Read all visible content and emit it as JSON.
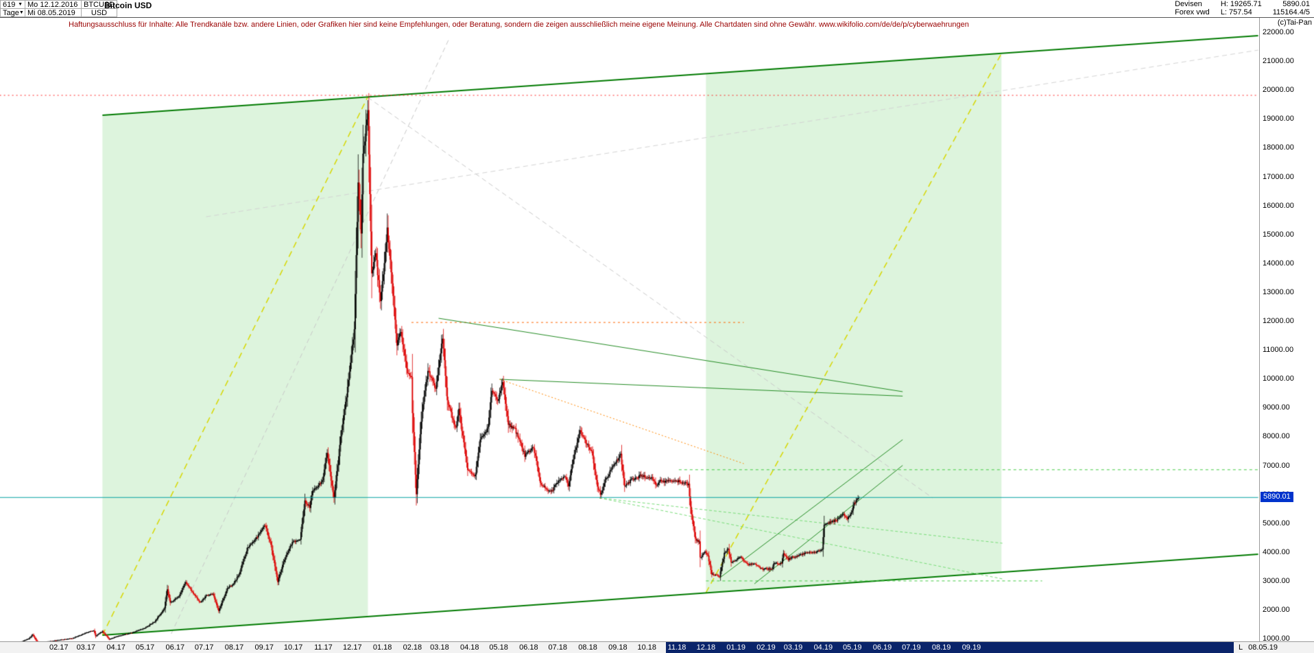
{
  "header": {
    "bars_count": "619",
    "timeframe": "Tage",
    "start_date": "Mo 12.12.2016",
    "end_date": "Mi 08.05.2019",
    "symbol": "BTCUSD",
    "currency": "USD",
    "title": "Bitcoin USD",
    "market": "Devisen",
    "source": "Forex vwd",
    "high_label": "H: 19265.71",
    "low_label": "L: 757.54",
    "last_price": "5890.01",
    "volume_info": "115164.4/5",
    "copyright": "(c)Tai-Pan"
  },
  "disclaimer": "Haftungsausschluss für Inhalte: Alle Trendkanäle bzw. andere Linien, oder Grafiken hier sind keine Empfehlungen, oder Beratung, sondern die zeigen ausschließlich meine eigene Meinung. Alle Chartdaten sind ohne Gewähr.  www.wikifolio.com/de/de/p/cyberwaehrungen",
  "axes": {
    "y_ticks": [
      "22000.00",
      "21000.00",
      "20000.00",
      "19000.00",
      "18000.00",
      "17000.00",
      "16000.00",
      "15000.00",
      "14000.00",
      "13000.00",
      "12000.00",
      "11000.00",
      "10000.00",
      "9000.00",
      "8000.00",
      "7000.00",
      "6000.00",
      "5000.00",
      "4000.00",
      "3000.00",
      "2000.00",
      "1000.00"
    ],
    "current_price_label": "5890.01",
    "last_label": "L",
    "last_date": "08.05.19",
    "selection_days": [
      658,
      1244
    ],
    "x_ticks": [
      {
        "label": "02.17",
        "day": 31
      },
      {
        "label": "03.17",
        "day": 59
      },
      {
        "label": "04.17",
        "day": 90
      },
      {
        "label": "05.17",
        "day": 120
      },
      {
        "label": "06.17",
        "day": 151
      },
      {
        "label": "07.17",
        "day": 181
      },
      {
        "label": "08.17",
        "day": 212
      },
      {
        "label": "09.17",
        "day": 243
      },
      {
        "label": "10.17",
        "day": 273
      },
      {
        "label": "11.17",
        "day": 304
      },
      {
        "label": "12.17",
        "day": 334
      },
      {
        "label": "01.18",
        "day": 365
      },
      {
        "label": "02.18",
        "day": 396
      },
      {
        "label": "03.18",
        "day": 424
      },
      {
        "label": "04.18",
        "day": 455
      },
      {
        "label": "05.18",
        "day": 485
      },
      {
        "label": "06.18",
        "day": 516
      },
      {
        "label": "07.18",
        "day": 546
      },
      {
        "label": "08.18",
        "day": 577
      },
      {
        "label": "09.18",
        "day": 608
      },
      {
        "label": "10.18",
        "day": 638
      },
      {
        "label": "11.18",
        "day": 669,
        "selected": true
      },
      {
        "label": "12.18",
        "day": 699,
        "selected": true
      },
      {
        "label": "01.19",
        "day": 730,
        "selected": true
      },
      {
        "label": "02.19",
        "day": 761,
        "selected": true
      },
      {
        "label": "03.19",
        "day": 789,
        "selected": true
      },
      {
        "label": "04.19",
        "day": 820,
        "selected": true
      },
      {
        "label": "05.19",
        "day": 850,
        "selected": true
      },
      {
        "label": "06.19",
        "day": 881,
        "selected": true
      },
      {
        "label": "07.19",
        "day": 911,
        "selected": true
      },
      {
        "label": "08.19",
        "day": 942,
        "selected": true
      },
      {
        "label": "09.19",
        "day": 973,
        "selected": true
      }
    ]
  },
  "chart_data": {
    "type": "candlestick",
    "title": "Bitcoin USD",
    "x_unit": "days since 2017-01-01 (series starts Mo 12.12.2016 = day -20, ends Mi 08.05.2019 = day 857)",
    "y_axis": {
      "scale": "linear",
      "label_min": 1000,
      "label_max": 22000,
      "step": 1000
    },
    "series_high": 19265.71,
    "series_low": 757.54,
    "last_close": 5890.01,
    "colors": {
      "up": "#000000",
      "down": "#dd0000",
      "current_price_line": "#00a0a0",
      "channel_fill": "rgba(144,220,144,0.30)"
    },
    "anchors": [
      [
        -20,
        772
      ],
      [
        -15,
        800
      ],
      [
        -8,
        895
      ],
      [
        0,
        998
      ],
      [
        4,
        1135
      ],
      [
        11,
        760
      ],
      [
        20,
        900
      ],
      [
        34,
        965
      ],
      [
        45,
        1010
      ],
      [
        58,
        1185
      ],
      [
        67,
        1290
      ],
      [
        69,
        1085
      ],
      [
        76,
        1255
      ],
      [
        83,
        975
      ],
      [
        92,
        1090
      ],
      [
        104,
        1185
      ],
      [
        119,
        1355
      ],
      [
        130,
        1590
      ],
      [
        140,
        2050
      ],
      [
        143,
        2700
      ],
      [
        146,
        2250
      ],
      [
        155,
        2465
      ],
      [
        162,
        2960
      ],
      [
        170,
        2550
      ],
      [
        177,
        2250
      ],
      [
        183,
        2480
      ],
      [
        190,
        2560
      ],
      [
        196,
        1960
      ],
      [
        205,
        2750
      ],
      [
        211,
        2875
      ],
      [
        217,
        3230
      ],
      [
        226,
        4160
      ],
      [
        233,
        4390
      ],
      [
        244,
        4950
      ],
      [
        250,
        4230
      ],
      [
        257,
        2980
      ],
      [
        263,
        3660
      ],
      [
        272,
        4340
      ],
      [
        280,
        4425
      ],
      [
        285,
        5750
      ],
      [
        290,
        5560
      ],
      [
        293,
        6120
      ],
      [
        303,
        6460
      ],
      [
        308,
        7400
      ],
      [
        315,
        5850
      ],
      [
        323,
        8250
      ],
      [
        330,
        9900
      ],
      [
        333,
        10880
      ],
      [
        336,
        11650
      ],
      [
        340,
        16850
      ],
      [
        343,
        15100
      ],
      [
        345,
        17700
      ],
      [
        350,
        19265
      ],
      [
        354,
        13660
      ],
      [
        358,
        14400
      ],
      [
        363,
        12630
      ],
      [
        370,
        15180
      ],
      [
        375,
        13320
      ],
      [
        380,
        11120
      ],
      [
        384,
        11700
      ],
      [
        391,
        10230
      ],
      [
        395,
        10100
      ],
      [
        396,
        8830
      ],
      [
        400,
        6000
      ],
      [
        405,
        8570
      ],
      [
        412,
        10300
      ],
      [
        420,
        9650
      ],
      [
        423,
        10350
      ],
      [
        427,
        11450
      ],
      [
        432,
        9250
      ],
      [
        441,
        8250
      ],
      [
        444,
        8950
      ],
      [
        453,
        6850
      ],
      [
        461,
        6650
      ],
      [
        466,
        7900
      ],
      [
        474,
        8300
      ],
      [
        478,
        9650
      ],
      [
        484,
        9250
      ],
      [
        489,
        9850
      ],
      [
        495,
        8450
      ],
      [
        502,
        8250
      ],
      [
        512,
        7350
      ],
      [
        521,
        7650
      ],
      [
        528,
        6400
      ],
      [
        539,
        6050
      ],
      [
        545,
        6400
      ],
      [
        553,
        6650
      ],
      [
        557,
        6250
      ],
      [
        563,
        7400
      ],
      [
        569,
        8250
      ],
      [
        576,
        7750
      ],
      [
        581,
        7500
      ],
      [
        587,
        6300
      ],
      [
        590,
        6000
      ],
      [
        596,
        6550
      ],
      [
        604,
        7050
      ],
      [
        611,
        7350
      ],
      [
        615,
        6250
      ],
      [
        622,
        6500
      ],
      [
        632,
        6650
      ],
      [
        637,
        6600
      ],
      [
        644,
        6550
      ],
      [
        648,
        6300
      ],
      [
        652,
        6450
      ],
      [
        668,
        6480
      ],
      [
        675,
        6400
      ],
      [
        681,
        6350
      ],
      [
        683,
        5550
      ],
      [
        688,
        4450
      ],
      [
        692,
        4350
      ],
      [
        693,
        3800
      ],
      [
        698,
        4000
      ],
      [
        701,
        3850
      ],
      [
        705,
        3250
      ],
      [
        713,
        3150
      ],
      [
        718,
        3950
      ],
      [
        722,
        4100
      ],
      [
        725,
        3650
      ],
      [
        729,
        3700
      ],
      [
        735,
        3850
      ],
      [
        742,
        3550
      ],
      [
        749,
        3600
      ],
      [
        757,
        3400
      ],
      [
        760,
        3430
      ],
      [
        767,
        3400
      ],
      [
        769,
        3620
      ],
      [
        777,
        3600
      ],
      [
        779,
        3950
      ],
      [
        784,
        3750
      ],
      [
        788,
        3820
      ],
      [
        792,
        3850
      ],
      [
        797,
        3900
      ],
      [
        803,
        4000
      ],
      [
        812,
        4000
      ],
      [
        819,
        4100
      ],
      [
        821,
        4950
      ],
      [
        827,
        5050
      ],
      [
        834,
        5100
      ],
      [
        841,
        5300
      ],
      [
        845,
        5150
      ],
      [
        849,
        5350
      ],
      [
        852,
        5700
      ],
      [
        855,
        5800
      ],
      [
        857,
        5890.01
      ]
    ],
    "annotations": {
      "channel": {
        "top": [
          [
            76,
            19126
          ],
          [
            1269,
            21881
          ]
        ],
        "bottom": [
          [
            76,
            1121
          ],
          [
            1269,
            3924
          ]
        ]
      },
      "regions": [
        {
          "name": "bull-channel-2017",
          "x_days": [
            76,
            350
          ],
          "color": "rgba(144,220,144,0.30)"
        },
        {
          "name": "projection-channel-2019",
          "x_days": [
            699,
            1004
          ],
          "color": "rgba(144,220,144,0.30)"
        }
      ],
      "lines": [
        {
          "name": "gray-diagonal-1",
          "pts": [
            [
              147,
              1169
            ],
            [
              434,
              21786
            ]
          ],
          "color": "#c9c9c9",
          "width": 1,
          "dash": [
            7,
            5
          ]
        },
        {
          "name": "gray-diagonal-2",
          "pts": [
            [
              350,
              19743
            ],
            [
              933,
              5872
            ]
          ],
          "color": "#c9c9c9",
          "width": 1,
          "dash": [
            7,
            5
          ]
        },
        {
          "name": "gray-diagonal-3",
          "pts": [
            [
              183,
              15610
            ],
            [
              1269,
              21382
            ]
          ],
          "color": "#d4d4d4",
          "width": 1,
          "dash": [
            7,
            5
          ]
        },
        {
          "name": "yellow-diagonal-2017",
          "pts": [
            [
              76,
              1121
            ],
            [
              350,
              19767
            ]
          ],
          "color": "#d8d800",
          "width": 1.5,
          "dash": [
            9,
            6
          ]
        },
        {
          "name": "yellow-diagonal-2019",
          "pts": [
            [
              699,
              2594
            ],
            [
              1004,
              21264
            ]
          ],
          "color": "#d8d800",
          "width": 1.5,
          "dash": [
            9,
            6
          ]
        },
        {
          "name": "channel-top",
          "pts": [
            [
              76,
              19126
            ],
            [
              1269,
              21881
            ]
          ],
          "color": "#007a00",
          "width": 2
        },
        {
          "name": "channel-bottom",
          "pts": [
            [
              76,
              1121
            ],
            [
              1269,
              3924
            ]
          ],
          "color": "#007a00",
          "width": 2
        },
        {
          "name": "resistance-19800",
          "pts": [
            [
              -30,
              19815
            ],
            [
              1269,
              19815
            ]
          ],
          "color": "#ff2222",
          "width": 1,
          "dash": [
            2,
            4
          ]
        },
        {
          "name": "resistance-12000",
          "pts": [
            [
              395,
              11950
            ],
            [
              738,
              11950
            ]
          ],
          "color": "#ff6600",
          "width": 1,
          "dash": [
            3,
            4
          ]
        },
        {
          "name": "downtrend-major",
          "pts": [
            [
              423,
              12095
            ],
            [
              902,
              9553
            ]
          ],
          "color": "#228b22",
          "width": 1
        },
        {
          "name": "downtrend-minor",
          "pts": [
            [
              486,
              9981
            ],
            [
              902,
              9400
            ]
          ],
          "color": "#228b22",
          "width": 1
        },
        {
          "name": "downtrend-orange",
          "pts": [
            [
              486,
              9981
            ],
            [
              738,
              7060
            ]
          ],
          "color": "#ff8800",
          "width": 1,
          "dash": [
            2,
            3
          ]
        },
        {
          "name": "fan-support-1",
          "pts": [
            [
              589,
              5872
            ],
            [
              1005,
              4304
            ]
          ],
          "color": "#77dd77",
          "width": 1,
          "dash": [
            4,
            3
          ]
        },
        {
          "name": "fan-support-2",
          "pts": [
            [
              589,
              5872
            ],
            [
              1005,
              3069
            ]
          ],
          "color": "#77dd77",
          "width": 1,
          "dash": [
            4,
            3
          ]
        },
        {
          "name": "support-6850",
          "pts": [
            [
              671,
              6850
            ],
            [
              1269,
              6850
            ]
          ],
          "color": "#44cc44",
          "width": 1,
          "dash": [
            4,
            4
          ]
        },
        {
          "name": "support-3000",
          "pts": [
            [
              699,
              3000
            ],
            [
              1046,
              3000
            ]
          ],
          "color": "#44cc44",
          "width": 1,
          "dash": [
            4,
            4
          ]
        },
        {
          "name": "uptrend-2019-a",
          "pts": [
            [
              713,
              3100
            ],
            [
              902,
              7891
            ]
          ],
          "color": "#228b22",
          "width": 1
        },
        {
          "name": "uptrend-2019-b",
          "pts": [
            [
              749,
              2900
            ],
            [
              902,
              7000
            ]
          ],
          "color": "#228b22",
          "width": 1
        },
        {
          "name": "current-price-line",
          "pts": [
            [
              -30,
              5890.01
            ],
            [
              1269,
              5890.01
            ]
          ],
          "color": "#00a0a0",
          "width": 1.2,
          "above": true
        }
      ]
    }
  }
}
